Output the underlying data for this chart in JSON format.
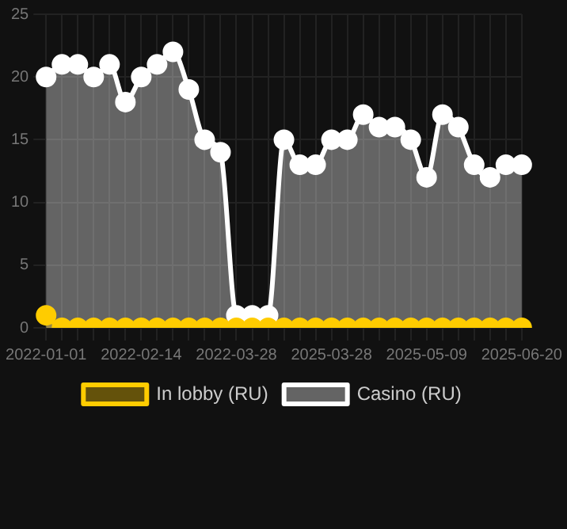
{
  "chart_data": {
    "type": "area",
    "categories": [
      "2022-01-01",
      null,
      null,
      null,
      null,
      null,
      "2022-02-14",
      null,
      null,
      null,
      null,
      null,
      "2022-03-28",
      null,
      null,
      null,
      null,
      null,
      "2025-03-28",
      null,
      null,
      null,
      null,
      null,
      "2025-05-09",
      null,
      null,
      null,
      null,
      null,
      "2025-06-20"
    ],
    "series": [
      {
        "name": "In lobby (RU)",
        "color": "#ffcc00",
        "values": [
          1,
          0,
          0,
          0,
          0,
          0,
          0,
          0,
          0,
          0,
          0,
          0,
          0,
          0,
          0,
          0,
          0,
          0,
          0,
          0,
          0,
          0,
          0,
          0,
          0,
          0,
          0,
          0,
          0,
          0,
          0
        ]
      },
      {
        "name": "Casino (RU)",
        "color": "#ffffff",
        "values": [
          20,
          21,
          21,
          20,
          21,
          18,
          20,
          21,
          22,
          19,
          15,
          14,
          1,
          1,
          1,
          15,
          13,
          13,
          15,
          15,
          17,
          16,
          16,
          15,
          12,
          17,
          16,
          13,
          12,
          13,
          13
        ]
      }
    ],
    "ylim": [
      0,
      25
    ],
    "yticks": [
      0,
      5,
      10,
      15,
      20,
      25
    ],
    "grid": true,
    "legend": "bottom",
    "marker": "circle"
  }
}
